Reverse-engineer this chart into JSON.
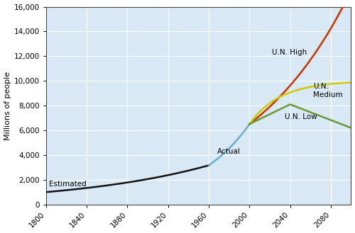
{
  "title": "",
  "ylabel": "Millions of people",
  "xlabel": "",
  "xlim": [
    1800,
    2100
  ],
  "ylim": [
    0,
    16000
  ],
  "yticks": [
    0,
    2000,
    4000,
    6000,
    8000,
    10000,
    12000,
    14000,
    16000
  ],
  "xticks": [
    1800,
    1840,
    1880,
    1920,
    1960,
    2000,
    2040,
    2080
  ],
  "bg_color": "#d8e8f4",
  "estimated_color": "#111111",
  "actual_color": "#6aaecc",
  "un_high_color": "#cc3300",
  "un_medium_color": "#cccc00",
  "un_low_color": "#669933",
  "label_estimated": "Estimated",
  "label_actual": "Actual",
  "label_un_high": "U.N. High",
  "label_un_medium": "U.N.\nMedium",
  "label_un_low": "U.N. Low",
  "figsize": [
    5.0,
    3.29
  ],
  "dpi": 100
}
